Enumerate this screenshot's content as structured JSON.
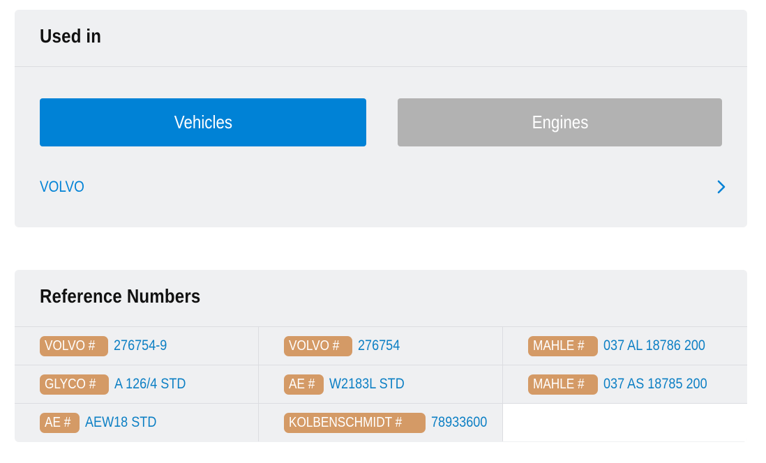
{
  "used_in": {
    "title": "Used in",
    "tabs": {
      "vehicles_label": "Vehicles",
      "engines_label": "Engines"
    },
    "items": [
      {
        "label": "VOLVO",
        "icon": "chevron-right-icon"
      }
    ]
  },
  "reference_numbers": {
    "title": "Reference Numbers",
    "rows": [
      [
        {
          "brand": "VOLVO #",
          "number": "276754-9"
        },
        {
          "brand": "VOLVO #",
          "number": "276754"
        },
        {
          "brand": "MAHLE #",
          "number": "037 AL 18786 200"
        }
      ],
      [
        {
          "brand": "GLYCO #",
          "number": "A 126/4 STD"
        },
        {
          "brand": "AE #",
          "number": "W2183L STD"
        },
        {
          "brand": "MAHLE #",
          "number": "037 AS 18785 200"
        }
      ],
      [
        {
          "brand": "AE #",
          "number": "AEW18 STD"
        },
        {
          "brand": "KOLBENSCHMIDT #",
          "number": "78933600"
        }
      ]
    ]
  },
  "colors": {
    "card_background": "#eff0f2",
    "accent_blue": "#0082d6",
    "inactive_gray": "#b2b2b2",
    "badge_tan": "#d49a66",
    "link_blue": "#0c7fc4"
  }
}
